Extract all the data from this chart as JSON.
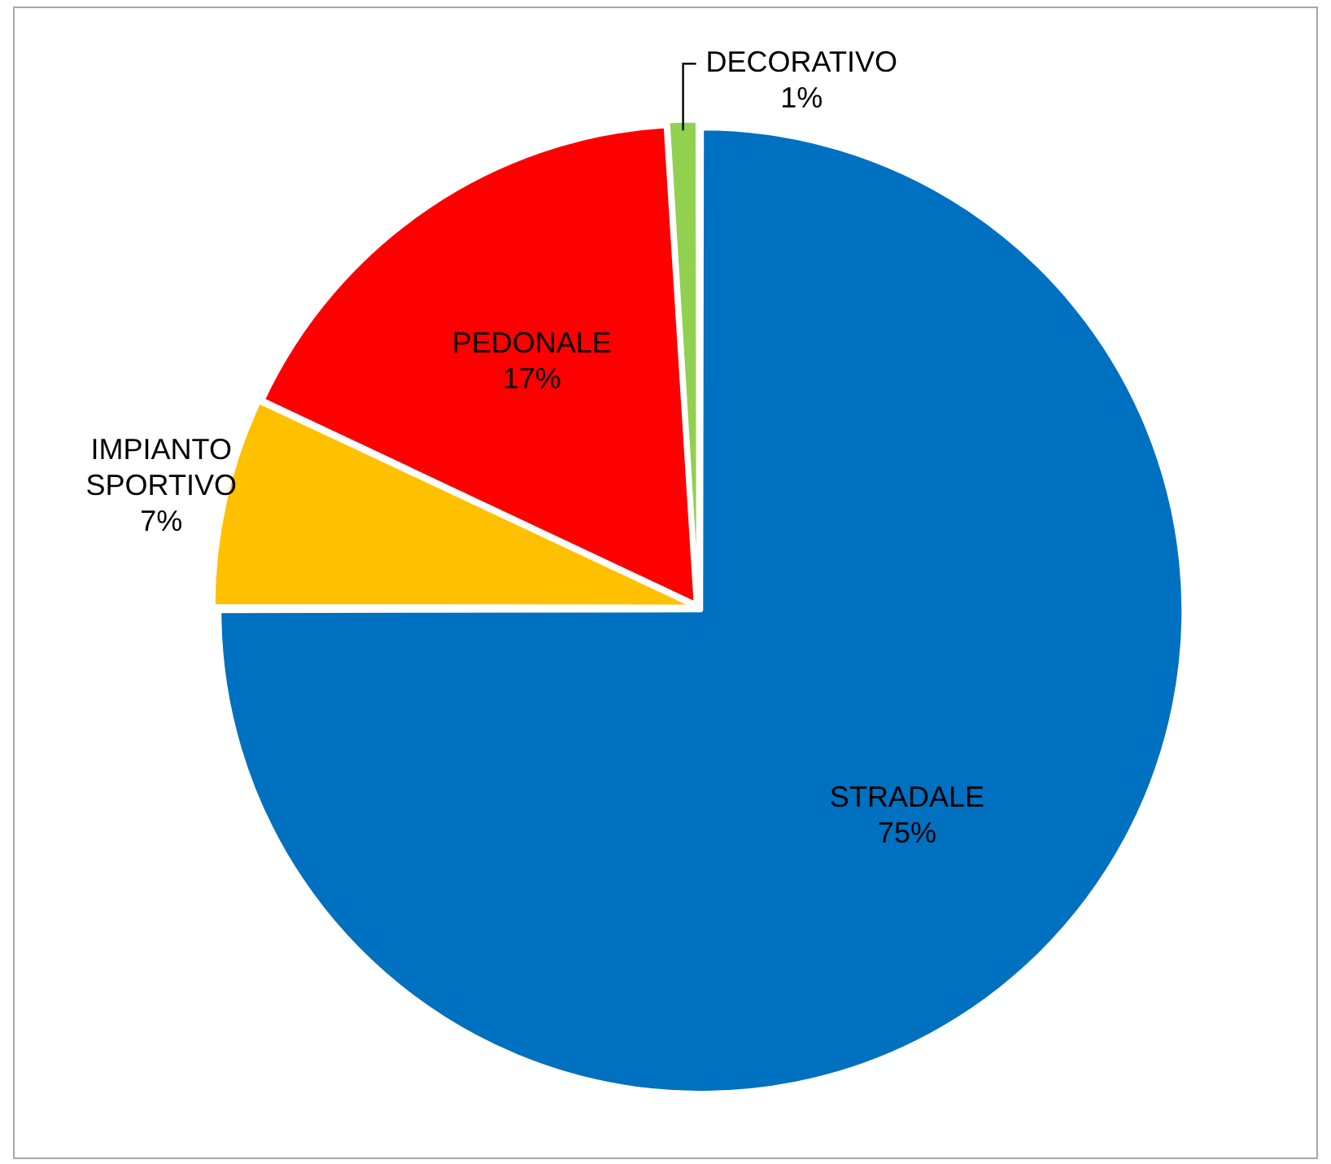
{
  "chart_data": {
    "type": "pie",
    "categories": [
      "STRADALE",
      "IMPIANTO SPORTIVO",
      "PEDONALE",
      "DECORATIVO"
    ],
    "values": [
      75,
      7,
      17,
      1
    ],
    "colors": [
      "#0070c0",
      "#ffc000",
      "#ff0000",
      "#92d050"
    ],
    "value_labels": [
      "75%",
      "7%",
      "17%",
      "1%"
    ],
    "legend": false
  }
}
